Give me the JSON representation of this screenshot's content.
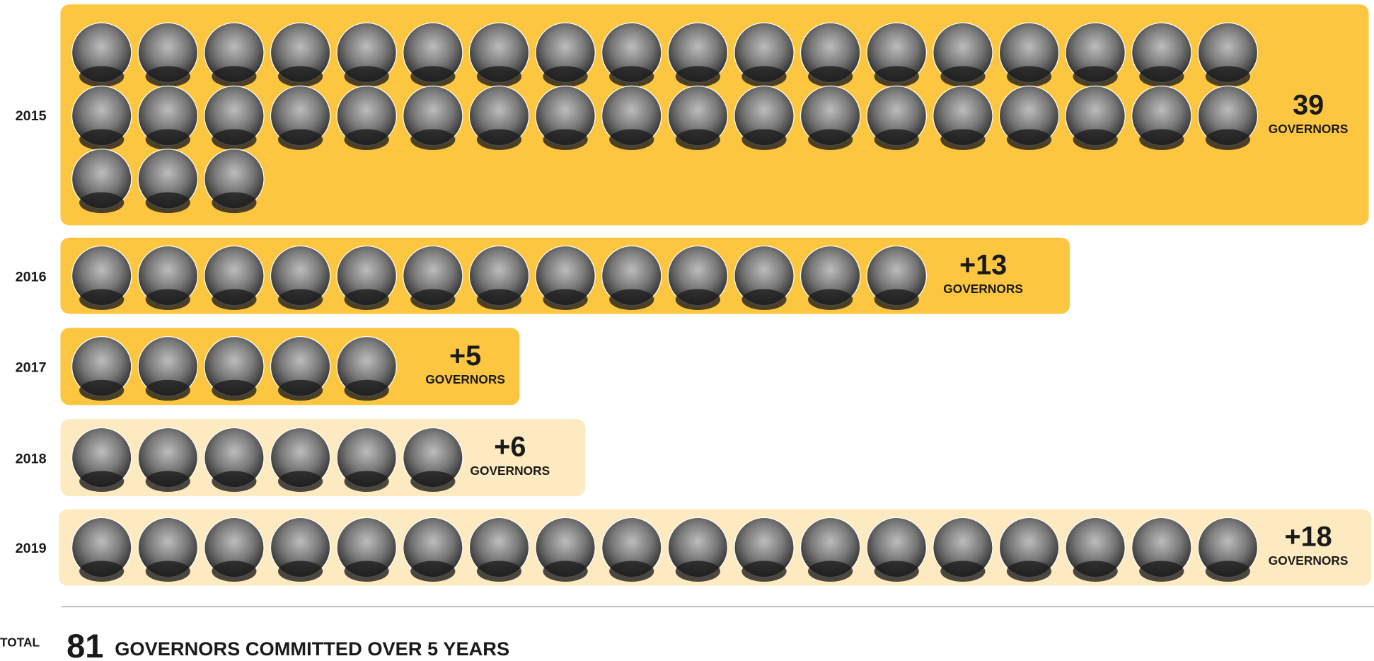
{
  "rows": [
    {
      "year": "2015",
      "count": 39,
      "count_label": "39",
      "unit": "GOVERNORS",
      "color": "#fcc640"
    },
    {
      "year": "2016",
      "count": 13,
      "count_label": "+13",
      "unit": "GOVERNORS",
      "color": "#fcc640"
    },
    {
      "year": "2017",
      "count": 5,
      "count_label": "+5",
      "unit": "GOVERNORS",
      "color": "#fcc640"
    },
    {
      "year": "2018",
      "count": 6,
      "count_label": "+6",
      "unit": "GOVERNORS",
      "color": "#feeac0"
    },
    {
      "year": "2019",
      "count": 18,
      "count_label": "+18",
      "unit": "GOVERNORS",
      "color": "#feeac0"
    }
  ],
  "total": {
    "label": "TOTAL",
    "number": "81",
    "text": "GOVERNORS COMMITTED OVER 5 YEARS"
  }
}
